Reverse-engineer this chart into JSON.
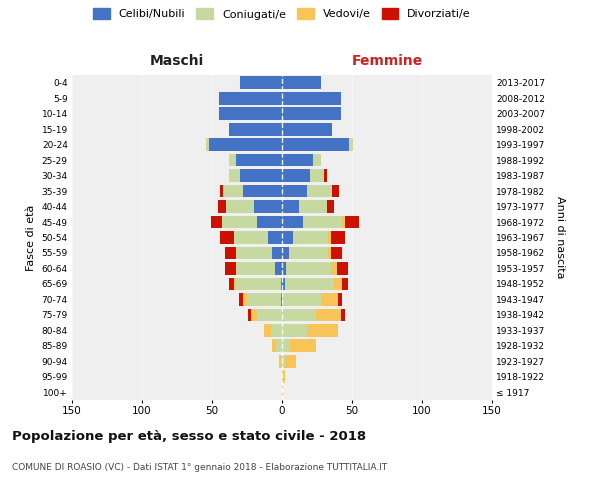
{
  "age_groups": [
    "100+",
    "95-99",
    "90-94",
    "85-89",
    "80-84",
    "75-79",
    "70-74",
    "65-69",
    "60-64",
    "55-59",
    "50-54",
    "45-49",
    "40-44",
    "35-39",
    "30-34",
    "25-29",
    "20-24",
    "15-19",
    "10-14",
    "5-9",
    "0-4"
  ],
  "birth_years": [
    "≤ 1917",
    "1918-1922",
    "1923-1927",
    "1928-1932",
    "1933-1937",
    "1938-1942",
    "1943-1947",
    "1948-1952",
    "1953-1957",
    "1958-1962",
    "1963-1967",
    "1968-1972",
    "1973-1977",
    "1978-1982",
    "1983-1987",
    "1988-1992",
    "1993-1997",
    "1998-2002",
    "2003-2007",
    "2008-2012",
    "2013-2017"
  ],
  "maschi": {
    "celibi": [
      0,
      0,
      0,
      0,
      0,
      0,
      1,
      1,
      5,
      7,
      10,
      18,
      20,
      28,
      30,
      33,
      52,
      38,
      45,
      45,
      30
    ],
    "coniugati": [
      0,
      0,
      1,
      4,
      8,
      18,
      24,
      32,
      28,
      26,
      24,
      25,
      20,
      14,
      8,
      5,
      2,
      0,
      0,
      0,
      0
    ],
    "vedovi": [
      0,
      0,
      1,
      3,
      5,
      4,
      3,
      1,
      0,
      0,
      0,
      0,
      0,
      0,
      0,
      0,
      0,
      0,
      0,
      0,
      0
    ],
    "divorziati": [
      0,
      0,
      0,
      0,
      0,
      2,
      3,
      4,
      8,
      8,
      10,
      8,
      6,
      2,
      0,
      0,
      0,
      0,
      0,
      0,
      0
    ]
  },
  "femmine": {
    "nubili": [
      0,
      0,
      0,
      0,
      0,
      0,
      0,
      2,
      3,
      5,
      8,
      15,
      12,
      18,
      20,
      22,
      48,
      36,
      42,
      42,
      28
    ],
    "coniugate": [
      0,
      0,
      2,
      6,
      18,
      24,
      28,
      35,
      32,
      28,
      25,
      28,
      20,
      18,
      10,
      6,
      3,
      0,
      0,
      0,
      0
    ],
    "vedove": [
      1,
      2,
      8,
      18,
      22,
      18,
      12,
      6,
      4,
      2,
      2,
      2,
      0,
      0,
      0,
      0,
      0,
      0,
      0,
      0,
      0
    ],
    "divorziate": [
      0,
      0,
      0,
      0,
      0,
      3,
      3,
      4,
      8,
      8,
      10,
      10,
      5,
      5,
      2,
      0,
      0,
      0,
      0,
      0,
      0
    ]
  },
  "colors": {
    "celibi": "#4472C4",
    "coniugati": "#C5D9A0",
    "vedovi": "#F9C457",
    "divorziati": "#CC1100"
  },
  "title": "Popolazione per età, sesso e stato civile - 2018",
  "subtitle": "COMUNE DI ROASIO (VC) - Dati ISTAT 1° gennaio 2018 - Elaborazione TUTTITALIA.IT",
  "label_maschi": "Maschi",
  "label_femmine": "Femmine",
  "ylabel_left": "Fasce di età",
  "ylabel_right": "Anni di nascita",
  "xlim": 150,
  "legend_labels": [
    "Celibi/Nubili",
    "Coniugati/e",
    "Vedovi/e",
    "Divorziati/e"
  ],
  "bg_color": "#efefef"
}
